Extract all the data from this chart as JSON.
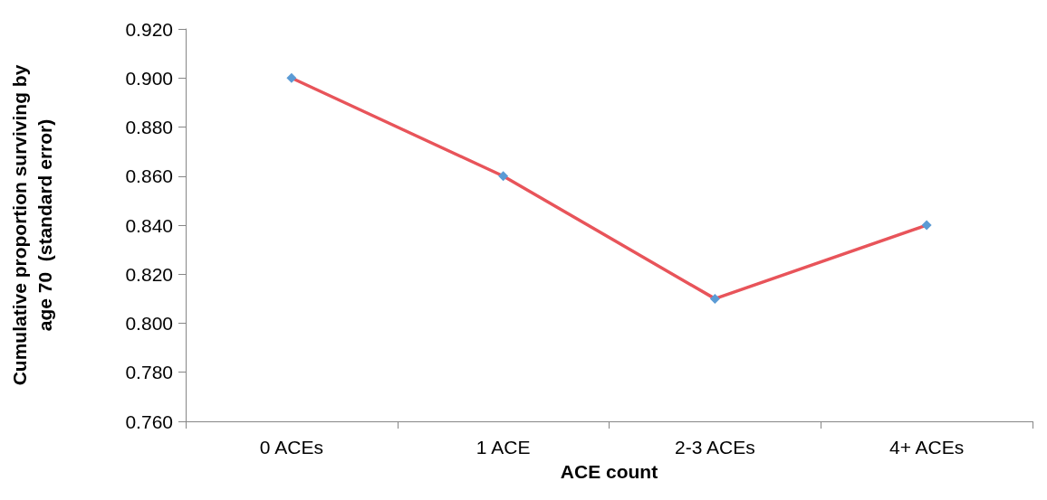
{
  "chart_data": {
    "type": "line",
    "xlabel": "ACE count",
    "ylabel": "Cumulative proportion surviving by age 70  (standard error)",
    "categories": [
      "0 ACEs",
      "1 ACE",
      "2-3 ACEs",
      "4+ ACEs"
    ],
    "series": [
      {
        "color": "#e8545a",
        "colors": [
          "#5b9bd5",
          "#5b9bd5",
          "#5b9bd5",
          "#5b9bd5"
        ],
        "values": [
          0.9,
          0.86,
          0.81,
          0.84
        ]
      }
    ],
    "ylim": [
      0.76,
      0.92
    ],
    "yticks": [
      {
        "value": 0.76,
        "label": "0.760"
      },
      {
        "value": 0.78,
        "label": "0.780"
      },
      {
        "value": 0.8,
        "label": "0.800"
      },
      {
        "value": 0.82,
        "label": "0.820"
      },
      {
        "value": 0.84,
        "label": "0.840"
      },
      {
        "value": 0.86,
        "label": "0.860"
      },
      {
        "value": 0.88,
        "label": "0.880"
      },
      {
        "value": 0.9,
        "label": "0.900"
      },
      {
        "value": 0.92,
        "label": "0.920"
      }
    ],
    "grid": false,
    "marker": "diamond",
    "line_style": "solid"
  }
}
